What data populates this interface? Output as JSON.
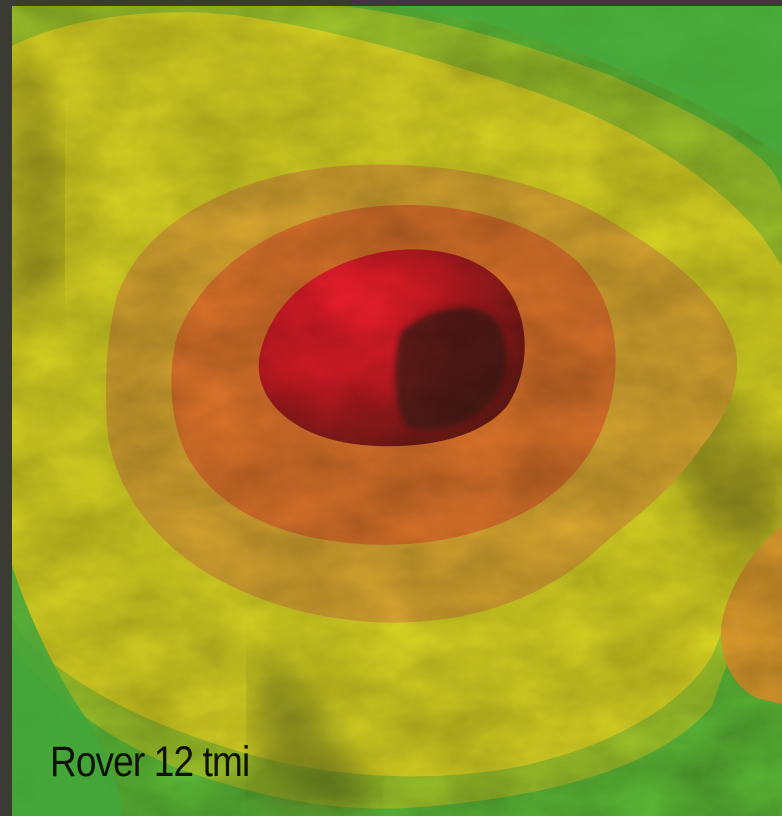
{
  "map": {
    "caption": "Rover 12 tmi",
    "colors": {
      "low": "#2fa43f",
      "mid_low": "#9fce2a",
      "mid": "#e5e21f",
      "mid_high": "#f0a22a",
      "high": "#e2441f",
      "peak": "#ef1c2a"
    }
  }
}
